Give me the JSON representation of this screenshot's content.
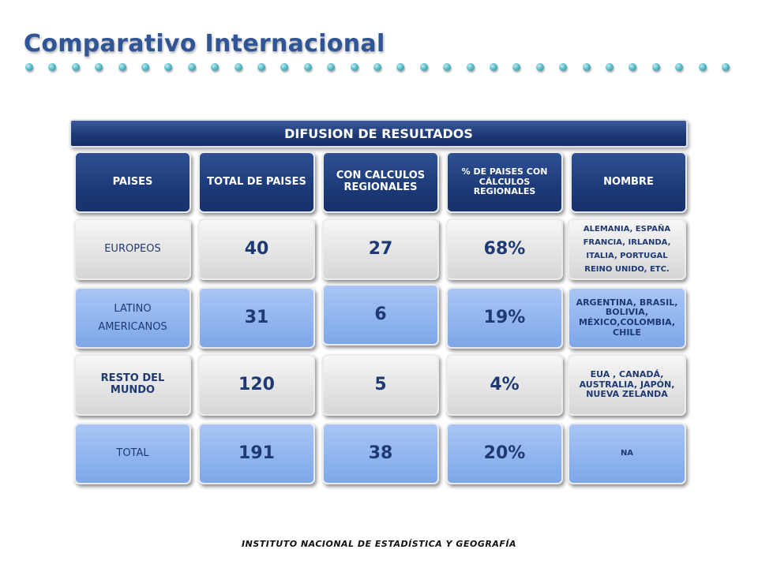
{
  "title": "Comparativo Internacional",
  "banner": "DIFUSION DE RESULTADOS",
  "headers": [
    "PAISES",
    "TOTAL DE PAISES",
    "CON CALCULOS REGIONALES",
    "% DE PAISES CON CÁLCULOS REGIONALES",
    "NOMBRE"
  ],
  "rows": [
    {
      "region": "EUROPEOS",
      "total": "40",
      "regional": "27",
      "percent": "68%",
      "names": "ALEMANIA, ESPAÑA FRANCIA, IRLANDA, ITALIA, PORTUGAL REINO UNIDO, ETC."
    },
    {
      "region": "LATINO AMERICANOS",
      "total": "31",
      "regional": "6",
      "percent": "19%",
      "names": "ARGENTINA, BRASIL, BOLIVIA, MÉXICO,COLOMBIA, CHILE"
    },
    {
      "region": "RESTO DEL MUNDO",
      "total": "120",
      "regional": "5",
      "percent": "4%",
      "names": "EUA , CANADÁ, AUSTRALIA, JAPÓN, NUEVA ZELANDA"
    },
    {
      "region": "TOTAL",
      "total": "191",
      "regional": "38",
      "percent": "20%",
      "names": "NA"
    }
  ],
  "footer": "INSTITUTO NACIONAL DE ESTADÍSTICA Y GEOGRAFÍA"
}
